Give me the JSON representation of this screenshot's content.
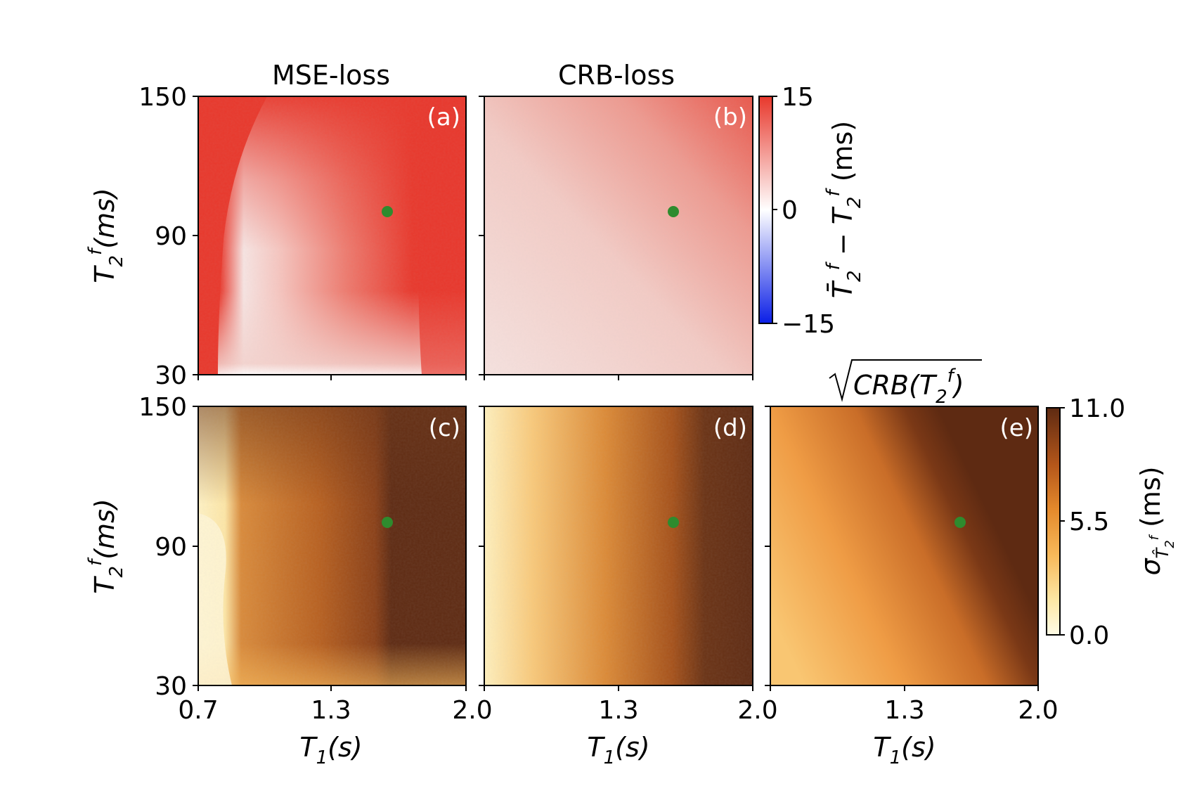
{
  "chart_data": [
    {
      "type": "heatmap",
      "panel_label": "(a)",
      "title": "MSE-loss",
      "xlabel": "",
      "ylabel": "T2f(ms)",
      "xlim": [
        0.7,
        2.0
      ],
      "ylim": [
        30,
        150
      ],
      "xticks": [
        "0.7",
        "1.3",
        "2.0"
      ],
      "yticks": [
        "30",
        "90",
        "150"
      ],
      "colormap": "bwr",
      "marker": {
        "x": 1.6,
        "y": 100,
        "color": "#2e8b2e"
      }
    },
    {
      "type": "heatmap",
      "panel_label": "(b)",
      "title": "CRB-loss",
      "xlabel": "",
      "ylabel": "",
      "xlim": [
        0.7,
        2.0
      ],
      "ylim": [
        30,
        150
      ],
      "xticks": [],
      "yticks": [],
      "colormap": "bwr",
      "marker": {
        "x": 1.6,
        "y": 100,
        "color": "#2e8b2e"
      }
    },
    {
      "type": "heatmap",
      "panel_label": "(c)",
      "title": "",
      "xlabel": "T1(s)",
      "ylabel": "T2f(ms)",
      "xlim": [
        0.7,
        2.0
      ],
      "ylim": [
        30,
        150
      ],
      "xticks": [
        "0.7",
        "1.3",
        "2.0"
      ],
      "yticks": [
        "30",
        "90",
        "150"
      ],
      "colormap": "YlOrBr",
      "marker": {
        "x": 1.6,
        "y": 100,
        "color": "#2e8b2e"
      }
    },
    {
      "type": "heatmap",
      "panel_label": "(d)",
      "title": "",
      "xlabel": "T1(s)",
      "ylabel": "",
      "xlim": [
        0.7,
        2.0
      ],
      "ylim": [
        30,
        150
      ],
      "xticks": [
        "1.3",
        "2.0"
      ],
      "yticks": [],
      "colormap": "YlOrBr",
      "marker": {
        "x": 1.6,
        "y": 100,
        "color": "#2e8b2e"
      }
    },
    {
      "type": "heatmap",
      "panel_label": "(e)",
      "title": "√CRB(T2f)",
      "xlabel": "T1(s)",
      "ylabel": "",
      "xlim": [
        0.7,
        2.0
      ],
      "ylim": [
        30,
        150
      ],
      "xticks": [
        "1.3",
        "2.0"
      ],
      "yticks": [],
      "colormap": "YlOrBr",
      "marker": {
        "x": 1.6,
        "y": 100,
        "color": "#2e8b2e"
      }
    }
  ],
  "colorbars": [
    {
      "label": "T̄2f − T2f (ms)",
      "range": [
        -15,
        15
      ],
      "ticks": [
        "−15",
        "0",
        "15"
      ],
      "colormap": "bwr"
    },
    {
      "label": "σ T̂2f (ms)",
      "range": [
        0.0,
        11.0
      ],
      "ticks": [
        "0.0",
        "5.5",
        "11.0"
      ],
      "colormap": "YlOrBr"
    }
  ],
  "colors": {
    "red": "#e8382c",
    "blue": "#0a1ee6",
    "dark_brown": "#5e2a12",
    "light_yellow": "#fff7d2",
    "marker_green": "#2e8b2e"
  }
}
